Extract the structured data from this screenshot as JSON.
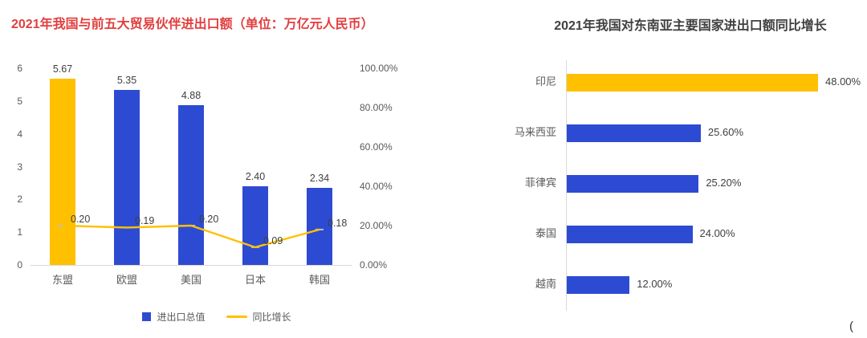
{
  "stray_text": "(",
  "colors": {
    "blue": "#2d4bd2",
    "gold": "#ffc000",
    "left_title": "#e23e3e",
    "right_title": "#404040",
    "axis_text": "#595959",
    "axis_line": "#d9d9d9",
    "marker": "#b9bfcc"
  },
  "chart_data": [
    {
      "type": "bar",
      "subtype": "vertical-bars-with-line-overlay",
      "title": "2021年我国与前五大贸易伙伴进出口额（单位：万亿元人民币）",
      "categories": [
        "东盟",
        "欧盟",
        "美国",
        "日本",
        "韩国"
      ],
      "series": [
        {
          "name": "进出口总值",
          "type": "bar",
          "axis": "left",
          "values": [
            5.67,
            5.35,
            4.88,
            2.4,
            2.34
          ],
          "labels": [
            "5.67",
            "5.35",
            "4.88",
            "2.40",
            "2.34"
          ],
          "colors": [
            "#ffc000",
            "#2d4bd2",
            "#2d4bd2",
            "#2d4bd2",
            "#2d4bd2"
          ]
        },
        {
          "name": "同比增长",
          "type": "line",
          "axis": "right",
          "values": [
            0.2,
            0.19,
            0.2,
            0.09,
            0.18
          ],
          "labels": [
            "0.20",
            "0.19",
            "0.20",
            "0.09",
            "0.18"
          ],
          "color": "#ffc000"
        }
      ],
      "left_axis": {
        "min": 0,
        "max": 6,
        "ticks": [
          "6",
          "5",
          "4",
          "3",
          "2",
          "1",
          "0"
        ]
      },
      "right_axis": {
        "min": 0,
        "max": 1,
        "ticks": [
          "100.00%",
          "80.00%",
          "60.00%",
          "40.00%",
          "20.00%",
          "0.00%"
        ]
      },
      "legend": [
        {
          "label": "进出口总值",
          "swatch": "square",
          "color": "#2d4bd2"
        },
        {
          "label": "同比增长",
          "swatch": "line",
          "color": "#ffc000"
        }
      ],
      "grid": false,
      "legend_position": "bottom"
    },
    {
      "type": "bar",
      "orientation": "horizontal",
      "title": "2021年我国对东南亚主要国家进出口额同比增长",
      "categories": [
        "印尼",
        "马来西亚",
        "菲律宾",
        "泰国",
        "越南"
      ],
      "values": [
        48.0,
        25.6,
        25.2,
        24.0,
        12.0
      ],
      "labels": [
        "48.00%",
        "25.60%",
        "25.20%",
        "24.00%",
        "12.00%"
      ],
      "colors": [
        "#ffc000",
        "#2d4bd2",
        "#2d4bd2",
        "#2d4bd2",
        "#2d4bd2"
      ],
      "xlim": [
        0,
        52
      ],
      "grid": false,
      "legend_position": "none"
    }
  ]
}
